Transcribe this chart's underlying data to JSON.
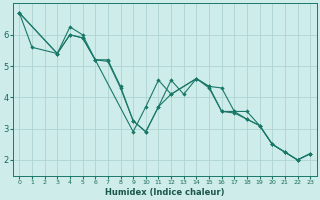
{
  "xlabel": "Humidex (Indice chaleur)",
  "bg_color": "#ceecea",
  "grid_color": "#aed4d0",
  "line_color": "#1a7868",
  "xlim": [
    -0.5,
    23.5
  ],
  "ylim": [
    1.5,
    7.0
  ],
  "yticks": [
    2,
    3,
    4,
    5,
    6
  ],
  "xtick_labels": [
    "0",
    "1",
    "2",
    "3",
    "4",
    "5",
    "6",
    "7",
    "8",
    "9",
    "10",
    "11",
    "12",
    "13",
    "14",
    "15",
    "16",
    "17",
    "18",
    "19",
    "20",
    "21",
    "22",
    "23"
  ],
  "lines": [
    {
      "x": [
        0,
        1,
        3,
        4,
        5,
        6,
        7,
        8,
        9,
        10,
        11,
        12,
        13,
        14,
        15,
        16,
        17,
        18,
        19,
        20,
        21,
        22,
        23
      ],
      "y": [
        6.7,
        5.6,
        5.4,
        6.25,
        6.0,
        5.2,
        5.2,
        4.35,
        3.25,
        2.9,
        3.7,
        4.55,
        4.1,
        4.6,
        4.35,
        4.3,
        3.55,
        3.55,
        3.1,
        2.5,
        2.25,
        2.0,
        2.2
      ]
    },
    {
      "x": [
        0,
        3,
        4,
        5,
        6,
        7,
        8,
        9,
        10,
        11,
        12,
        14,
        15,
        16,
        17,
        18,
        19,
        20,
        21,
        22,
        23
      ],
      "y": [
        6.7,
        5.4,
        6.0,
        5.9,
        5.2,
        5.15,
        4.3,
        3.25,
        2.9,
        3.7,
        4.1,
        4.6,
        4.3,
        3.55,
        3.5,
        3.3,
        3.1,
        2.5,
        2.25,
        2.0,
        2.2
      ]
    },
    {
      "x": [
        0,
        3,
        4,
        5,
        6,
        9,
        10,
        11,
        12,
        14,
        15,
        16,
        17,
        18,
        19,
        20,
        21,
        22,
        23
      ],
      "y": [
        6.7,
        5.4,
        6.0,
        5.9,
        5.2,
        2.9,
        3.7,
        4.55,
        4.1,
        4.6,
        4.35,
        3.55,
        3.55,
        3.3,
        3.1,
        2.5,
        2.25,
        2.0,
        2.2
      ]
    }
  ]
}
